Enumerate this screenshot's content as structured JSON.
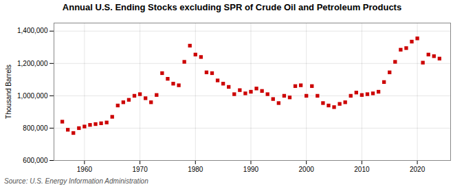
{
  "chart_data": {
    "type": "scatter",
    "title": "Annual U.S. Ending Stocks excluding SPR of Crude Oil and Petroleum Products",
    "ylabel": "Thousand Barrels",
    "annotations": [
      "Source: U.S. Energy Information Administration"
    ],
    "color": "#cc0000",
    "marker": "square",
    "grid": true,
    "xlim": [
      1954.5,
      2026
    ],
    "xticks": [
      1960,
      1970,
      1980,
      1990,
      2000,
      2010,
      2020
    ],
    "ylim": [
      600000,
      1450000
    ],
    "yticks": [
      {
        "value": 600000,
        "label": "600,000"
      },
      {
        "value": 800000,
        "label": "800,000"
      },
      {
        "value": 1000000,
        "label": "1,000,000"
      },
      {
        "value": 1200000,
        "label": "1,200,000"
      },
      {
        "value": 1400000,
        "label": "1,400,000"
      }
    ],
    "x": [
      1956,
      1957,
      1958,
      1959,
      1960,
      1961,
      1962,
      1963,
      1964,
      1965,
      1966,
      1967,
      1968,
      1969,
      1970,
      1971,
      1972,
      1973,
      1974,
      1975,
      1976,
      1977,
      1978,
      1979,
      1980,
      1981,
      1982,
      1983,
      1984,
      1985,
      1986,
      1987,
      1988,
      1989,
      1990,
      1991,
      1992,
      1993,
      1994,
      1995,
      1996,
      1997,
      1998,
      1999,
      2000,
      2001,
      2002,
      2003,
      2004,
      2005,
      2006,
      2007,
      2008,
      2009,
      2010,
      2011,
      2012,
      2013,
      2014,
      2015,
      2016,
      2017,
      2018,
      2019,
      2020,
      2021,
      2022,
      2023,
      2024
    ],
    "values": [
      840000,
      790000,
      770000,
      800000,
      810000,
      820000,
      825000,
      830000,
      835000,
      870000,
      940000,
      960000,
      975000,
      1000000,
      1010000,
      985000,
      960000,
      1005000,
      1140000,
      1105000,
      1075000,
      1065000,
      1210000,
      1310000,
      1255000,
      1240000,
      1145000,
      1140000,
      1095000,
      1075000,
      1055000,
      1010000,
      1035000,
      1015000,
      1025000,
      1045000,
      1030000,
      1010000,
      980000,
      955000,
      1000000,
      990000,
      1060000,
      1065000,
      1000000,
      1060000,
      1000000,
      955000,
      940000,
      930000,
      950000,
      960000,
      1000000,
      1020000,
      1005000,
      1010000,
      1015000,
      1025000,
      1085000,
      1145000,
      1210000,
      1285000,
      1295000,
      1335000,
      1355000,
      1205000,
      1255000,
      1245000,
      1230000
    ]
  }
}
